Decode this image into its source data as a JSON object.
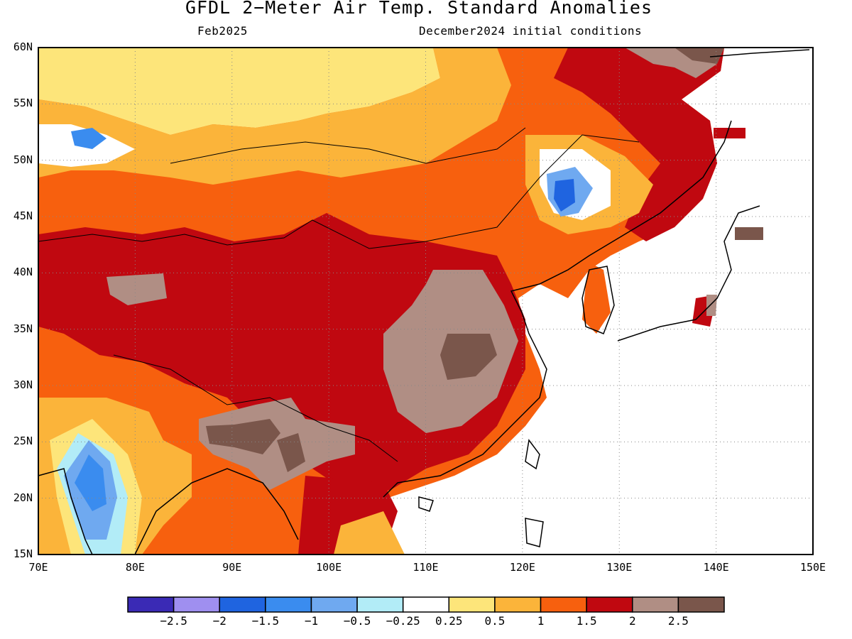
{
  "header": {
    "title": "GFDL 2−Meter Air Temp. Standard Anomalies",
    "subtitle_left": "Feb2025",
    "subtitle_right": "December2024 initial conditions"
  },
  "axes": {
    "lat_ticks": [
      "60N",
      "55N",
      "50N",
      "45N",
      "40N",
      "35N",
      "30N",
      "25N",
      "20N",
      "15N"
    ],
    "lat_values": [
      60,
      55,
      50,
      45,
      40,
      35,
      30,
      25,
      20,
      15
    ],
    "lon_ticks": [
      "70E",
      "80E",
      "90E",
      "100E",
      "110E",
      "120E",
      "130E",
      "140E",
      "150E"
    ],
    "lon_values": [
      70,
      80,
      90,
      100,
      110,
      120,
      130,
      140,
      150
    ],
    "lat_range": [
      15,
      60
    ],
    "lon_range": [
      70,
      150
    ],
    "grid": "dotted"
  },
  "colorbar": {
    "colors": [
      "#3a2ab5",
      "#9f8ff0",
      "#1f64e0",
      "#3a8cef",
      "#6fa9f0",
      "#b2ecf7",
      "#ffffff",
      "#fde57a",
      "#fbb43a",
      "#f7600e",
      "#c00810",
      "#b08e84",
      "#7a564b"
    ],
    "labels": [
      "−2.5",
      "−2",
      "−1.5",
      "−1",
      "−0.5",
      "−0.25",
      "0.25",
      "0.5",
      "1",
      "1.5",
      "2",
      "2.5"
    ]
  }
}
